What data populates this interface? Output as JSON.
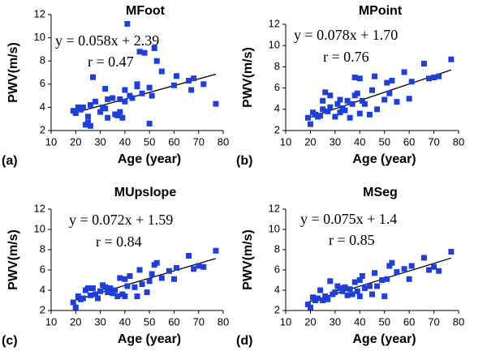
{
  "chart_data": [
    {
      "type": "scatter",
      "title": "MFoot",
      "panel_label": "(a)",
      "xlabel": "Age (year)",
      "ylabel": "PWV(m/s)",
      "equation": "y = 0.058x + 2.39",
      "r_text": "r = 0.47",
      "trend": {
        "slope": 0.058,
        "intercept": 2.39
      },
      "color": "#1f3fd6",
      "trend_color": "#000000",
      "xlim": [
        10,
        80
      ],
      "xticks": [
        10,
        20,
        30,
        40,
        50,
        60,
        70,
        80
      ],
      "ylim": [
        2,
        12
      ],
      "yticks": [
        2,
        4,
        6,
        8,
        10,
        12
      ],
      "x": [
        19,
        20,
        21,
        22,
        23,
        24,
        25,
        25,
        26,
        26,
        27,
        28,
        30,
        31,
        32,
        32,
        33,
        33,
        35,
        36,
        37,
        38,
        38,
        39,
        40,
        40,
        41,
        42,
        43,
        45,
        45,
        46,
        47,
        48,
        50,
        50,
        51,
        52,
        53,
        55,
        60,
        61,
        66,
        67,
        68,
        72,
        77
      ],
      "y": [
        3.7,
        3.5,
        4.0,
        3.8,
        4.0,
        2.5,
        3.2,
        2.7,
        2.4,
        4.2,
        6.6,
        4.5,
        3.6,
        4.0,
        5.6,
        3.9,
        3.1,
        4.7,
        4.8,
        3.4,
        3.3,
        4.7,
        3.6,
        3.1,
        5.5,
        4.5,
        11.2,
        5.0,
        4.8,
        5.8,
        6.0,
        8.8,
        5.2,
        8.7,
        2.6,
        5.7,
        5.0,
        9.1,
        8.0,
        7.1,
        5.9,
        6.7,
        6.3,
        5.5,
        6.5,
        6.0,
        4.3
      ]
    },
    {
      "type": "scatter",
      "title": "MPoint",
      "panel_label": "(b)",
      "xlabel": "Age (year)",
      "ylabel": "PWV(m/s)",
      "equation": "y = 0.078x + 1.70",
      "r_text": "r = 0.76",
      "trend": {
        "slope": 0.078,
        "intercept": 1.7
      },
      "color": "#1f3fd6",
      "trend_color": "#000000",
      "xlim": [
        10,
        80
      ],
      "xticks": [
        10,
        20,
        30,
        40,
        50,
        60,
        70,
        80
      ],
      "ylim": [
        2,
        12
      ],
      "yticks": [
        2,
        4,
        6,
        8,
        10,
        12
      ],
      "x": [
        19,
        20,
        21,
        22,
        23,
        24,
        25,
        25,
        26,
        27,
        28,
        28,
        30,
        31,
        32,
        32,
        33,
        34,
        35,
        36,
        37,
        38,
        38,
        39,
        40,
        40,
        41,
        42,
        44,
        45,
        46,
        47,
        50,
        51,
        52,
        53,
        55,
        58,
        60,
        61,
        66,
        68,
        70,
        72,
        77
      ],
      "y": [
        3.2,
        2.6,
        3.7,
        3.5,
        3.3,
        3.4,
        4.8,
        4.0,
        5.6,
        3.8,
        5.3,
        4.2,
        3.3,
        4.5,
        4.9,
        3.7,
        4.1,
        3.9,
        4.8,
        3.2,
        4.5,
        7.0,
        5.3,
        5.5,
        3.6,
        6.9,
        4.8,
        4.5,
        3.5,
        5.8,
        7.1,
        4.0,
        4.9,
        6.5,
        5.5,
        6.7,
        4.7,
        7.5,
        5.0,
        6.6,
        8.3,
        6.9,
        7.0,
        7.1,
        8.7
      ]
    },
    {
      "type": "scatter",
      "title": "MUpslope",
      "panel_label": "(c)",
      "xlabel": "Age (year)",
      "ylabel": "PWV(m/s)",
      "equation": "y = 0.072x + 1.59",
      "r_text": "r = 0.84",
      "trend": {
        "slope": 0.072,
        "intercept": 1.59
      },
      "color": "#1f3fd6",
      "trend_color": "#000000",
      "xlim": [
        10,
        80
      ],
      "xticks": [
        10,
        20,
        30,
        40,
        50,
        60,
        70,
        80
      ],
      "ylim": [
        2,
        12
      ],
      "yticks": [
        2,
        4,
        6,
        8,
        10,
        12
      ],
      "x": [
        19,
        20,
        21,
        22,
        23,
        24,
        25,
        26,
        27,
        28,
        29,
        30,
        31,
        32,
        33,
        34,
        35,
        36,
        37,
        38,
        39,
        40,
        40,
        41,
        42,
        44,
        45,
        46,
        47,
        49,
        50,
        51,
        52,
        53,
        55,
        58,
        60,
        61,
        66,
        68,
        70,
        72,
        77
      ],
      "y": [
        2.8,
        2.3,
        3.4,
        3.1,
        3.2,
        4.0,
        4.2,
        3.5,
        4.2,
        3.6,
        3.2,
        3.9,
        4.5,
        4.3,
        3.8,
        4.2,
        3.7,
        4.0,
        3.4,
        5.2,
        3.6,
        5.1,
        3.4,
        4.4,
        5.4,
        4.3,
        3.4,
        6.0,
        4.6,
        3.8,
        4.9,
        5.6,
        6.5,
        6.7,
        5.2,
        5.9,
        5.1,
        6.2,
        7.4,
        6.1,
        6.4,
        6.3,
        7.9
      ]
    },
    {
      "type": "scatter",
      "title": "MSeg",
      "panel_label": "(d)",
      "xlabel": "Age (year)",
      "ylabel": "PWV(m/s)",
      "equation": "y = 0.075x + 1.4",
      "r_text": "r = 0.85",
      "trend": {
        "slope": 0.075,
        "intercept": 1.4
      },
      "color": "#1f3fd6",
      "trend_color": "#000000",
      "xlim": [
        10,
        80
      ],
      "xticks": [
        10,
        20,
        30,
        40,
        50,
        60,
        70,
        80
      ],
      "ylim": [
        2,
        12
      ],
      "yticks": [
        2,
        4,
        6,
        8,
        10,
        12
      ],
      "x": [
        19,
        20,
        21,
        22,
        23,
        24,
        25,
        26,
        27,
        28,
        29,
        30,
        31,
        32,
        33,
        34,
        35,
        36,
        37,
        38,
        39,
        40,
        40,
        41,
        42,
        44,
        45,
        46,
        47,
        49,
        50,
        51,
        52,
        53,
        55,
        58,
        60,
        61,
        66,
        68,
        70,
        72,
        77
      ],
      "y": [
        2.6,
        2.3,
        3.3,
        3.0,
        3.2,
        4.0,
        3.0,
        3.4,
        3.1,
        4.9,
        3.6,
        3.8,
        4.4,
        4.2,
        3.9,
        4.3,
        3.5,
        4.1,
        3.6,
        4.8,
        3.9,
        5.0,
        3.4,
        5.4,
        4.2,
        4.4,
        3.6,
        5.7,
        4.4,
        5.0,
        3.4,
        5.1,
        6.4,
        6.7,
        5.8,
        6.1,
        5.1,
        6.4,
        7.2,
        6.0,
        6.3,
        5.9,
        7.8
      ]
    }
  ]
}
